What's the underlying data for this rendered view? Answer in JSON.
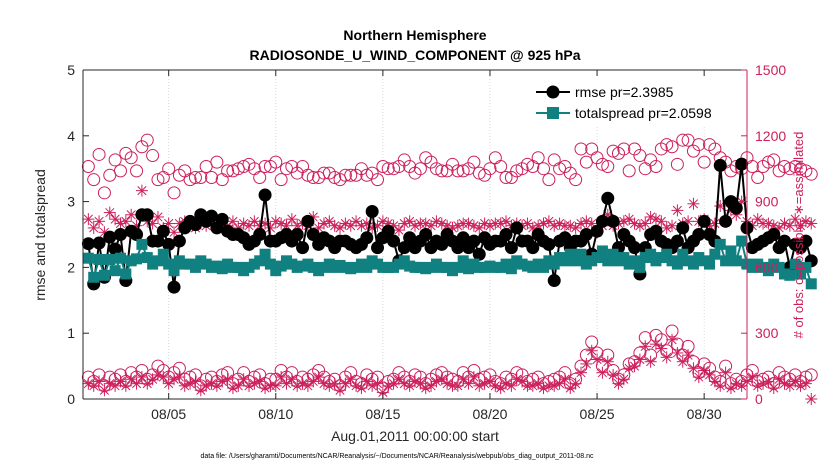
{
  "chart_data": {
    "type": "line",
    "title": [
      "Northern Hemisphere",
      "RADIOSONDE_U_WIND_COMPONENT @ 925 hPa"
    ],
    "xlabel": "Aug.01,2011 00:00:00 start",
    "ylabel_left": "rmse and totalspread",
    "ylabel_right": "# of obs: o=possible; ∗=assimilated",
    "footer": "data file: /Users/gharamti/Documents/NCAR/Reanalysis/~/Documents/NCAR/Reanalysis/webpub/obs_diag_output_2011-08.nc",
    "xlim": [
      1,
      32
    ],
    "ylim_left": [
      0,
      5
    ],
    "ylim_right": [
      0,
      1500
    ],
    "x_ticks": [
      {
        "day": 5,
        "label": "08/05"
      },
      {
        "day": 10,
        "label": "08/10"
      },
      {
        "day": 15,
        "label": "08/15"
      },
      {
        "day": 20,
        "label": "08/20"
      },
      {
        "day": 25,
        "label": "08/25"
      },
      {
        "day": 30,
        "label": "08/30"
      }
    ],
    "y_ticks_left": [
      "0",
      "1",
      "2",
      "3",
      "4",
      "5"
    ],
    "y_ticks_right": [
      "0",
      "300",
      "600",
      "900",
      "1200",
      "1500"
    ],
    "colors": {
      "rmse": "#000000",
      "totalspread": "#118080",
      "obs": "#cc1f5c",
      "axis": "#262626"
    },
    "legend": [
      {
        "key": "rmse",
        "label": "rmse pr=2.3985"
      },
      {
        "key": "totalspread",
        "label": "totalspread pr=2.0598"
      }
    ],
    "x_start": 1.25,
    "x_step": 0.25,
    "series": [
      {
        "name": "rmse",
        "values": [
          2.36,
          1.75,
          2.37,
          1.85,
          2.46,
          2.28,
          2.5,
          1.8,
          2.55,
          2.5,
          2.8,
          2.8,
          2.4,
          2.4,
          2.55,
          2.35,
          1.7,
          2.4,
          2.6,
          2.7,
          2.65,
          2.8,
          2.7,
          2.78,
          2.6,
          2.73,
          2.55,
          2.5,
          2.5,
          2.45,
          2.35,
          2.4,
          2.5,
          3.1,
          2.4,
          2.4,
          2.45,
          2.5,
          2.4,
          2.5,
          2.3,
          2.7,
          2.5,
          2.35,
          2.45,
          2.4,
          2.3,
          2.4,
          2.4,
          2.35,
          2.3,
          2.35,
          2.45,
          2.85,
          2.3,
          2.45,
          2.55,
          2.4,
          2.1,
          2.3,
          2.45,
          2.3,
          2.4,
          2.5,
          2.3,
          2.4,
          2.35,
          2.5,
          2.4,
          2.3,
          2.45,
          2.3,
          2.4,
          2.2,
          2.45,
          2.35,
          2.4,
          2.4,
          2.5,
          2.3,
          2.6,
          2.4,
          2.4,
          2.3,
          2.5,
          2.4,
          2.35,
          1.8,
          2.4,
          2.45,
          2.3,
          2.4,
          2.4,
          2.5,
          2.2,
          2.55,
          2.7,
          3.05,
          2.7,
          2.3,
          2.5,
          2.4,
          2.3,
          1.9,
          2.3,
          2.5,
          2.55,
          2.4,
          2.35,
          2.3,
          2.4,
          2.6,
          2.3,
          2.4,
          2.5,
          2.7,
          2.5,
          2.4,
          3.55,
          2.7,
          3.0,
          2.9,
          3.57,
          2.6,
          2.3,
          2.35,
          2.4,
          2.45,
          2.5,
          2.3,
          2.4,
          2.0,
          2.35,
          2.3,
          2.4,
          2.1
        ]
      },
      {
        "name": "totalspread",
        "values": [
          2.14,
          1.85,
          2.12,
          1.88,
          2.12,
          1.95,
          2.14,
          1.9,
          2.1,
          2.13,
          2.35,
          2.15,
          2.05,
          2.1,
          2.2,
          2.05,
          1.95,
          2.1,
          2.05,
          2.05,
          2.0,
          2.1,
          2.05,
          2.0,
          2.02,
          1.98,
          2.05,
          2.0,
          2.0,
          1.95,
          2.0,
          2.05,
          2.1,
          2.2,
          2.05,
          1.95,
          2.02,
          2.1,
          2.05,
          2.0,
          2.02,
          2.05,
          2.0,
          1.95,
          2.0,
          2.05,
          2.0,
          2.03,
          2.0,
          1.98,
          2.0,
          2.05,
          2.0,
          2.1,
          2.05,
          2.0,
          2.0,
          2.0,
          2.05,
          2.1,
          2.02,
          2.0,
          2.0,
          1.98,
          2.0,
          2.05,
          2.0,
          2.0,
          1.95,
          2.0,
          2.1,
          1.98,
          2.05,
          2.0,
          2.0,
          2.02,
          2.0,
          2.0,
          2.05,
          1.98,
          2.1,
          2.05,
          2.02,
          2.0,
          2.05,
          2.0,
          2.1,
          2.05,
          2.15,
          2.1,
          2.2,
          2.1,
          2.2,
          2.05,
          2.1,
          2.15,
          2.25,
          2.1,
          2.2,
          2.1,
          2.15,
          2.05,
          2.1,
          2.0,
          2.15,
          2.2,
          2.1,
          2.15,
          2.2,
          2.1,
          2.05,
          2.2,
          2.1,
          2.05,
          2.15,
          2.1,
          2.05,
          2.2,
          2.35,
          2.1,
          2.25,
          2.1,
          2.4,
          2.05,
          2.0,
          2.05,
          2.0,
          1.95,
          2.05,
          2.0,
          1.9,
          1.88,
          2.05,
          1.9,
          2.0,
          1.75
        ]
      },
      {
        "name": "possible",
        "values": [
          1060,
          1000,
          1115,
          940,
          1020,
          1090,
          1040,
          1120,
          1100,
          1040,
          1150,
          1180,
          1110,
          1000,
          1010,
          1050,
          940,
          1020,
          1040,
          1000,
          1010,
          1010,
          1060,
          1010,
          1080,
          1000,
          1040,
          1040,
          1050,
          1060,
          1070,
          1050,
          1010,
          1060,
          1060,
          1080,
          1000,
          1050,
          1060,
          1030,
          1060,
          1020,
          1010,
          1010,
          1030,
          1030,
          1010,
          1000,
          1020,
          1020,
          1020,
          1050,
          1020,
          1030,
          1000,
          1060,
          1050,
          1050,
          1060,
          1090,
          1060,
          1030,
          1050,
          1100,
          1080,
          1050,
          1040,
          1040,
          1070,
          1040,
          1040,
          1050,
          1080,
          1030,
          1020,
          1050,
          1100,
          1060,
          1010,
          1010,
          1040,
          1050,
          1070,
          1060,
          1100,
          1050,
          1000,
          1090,
          1050,
          1060,
          1030,
          1000,
          1140,
          1080,
          1140,
          1100,
          1070,
          1060,
          1130,
          1120,
          1140,
          1040,
          1140,
          1110,
          1050,
          1090,
          1060,
          1140,
          1160,
          1150,
          1070,
          1180,
          1180,
          1130,
          1160,
          1080,
          1160,
          1140,
          1100,
          1080,
          1040,
          1060,
          1050,
          1100,
          1060,
          1010,
          1060,
          1080,
          1090,
          1040,
          1060,
          1050,
          1060,
          1050,
          1040,
          1025
        ]
      },
      {
        "name": "assimilated",
        "values": [
          820,
          780,
          810,
          760,
          850,
          820,
          800,
          810,
          840,
          790,
          950,
          810,
          800,
          830,
          780,
          800,
          760,
          800,
          810,
          790,
          780,
          800,
          790,
          800,
          790,
          780,
          790,
          810,
          780,
          800,
          790,
          810,
          790,
          800,
          780,
          810,
          800,
          790,
          820,
          790,
          800,
          790,
          830,
          780,
          800,
          810,
          790,
          780,
          800,
          790,
          810,
          790,
          800,
          780,
          790,
          810,
          800,
          790,
          770,
          800,
          810,
          790,
          800,
          800,
          790,
          810,
          800,
          790,
          780,
          790,
          800,
          800,
          790,
          780,
          800,
          790,
          800,
          800,
          810,
          790,
          800,
          790,
          800,
          780,
          790,
          800,
          810,
          790,
          800,
          790,
          790,
          780,
          800,
          810,
          800,
          760,
          790,
          840,
          790,
          800,
          810,
          820,
          800,
          790,
          800,
          830,
          820,
          810,
          780,
          790,
          860,
          800,
          810,
          890,
          810,
          820,
          790,
          800,
          880,
          810,
          860,
          840,
          900,
          810,
          790,
          820,
          800,
          800,
          790,
          780,
          800,
          790,
          820,
          790,
          810,
          800
        ]
      },
      {
        "name": "possible_low",
        "values": [
          100,
          80,
          110,
          60,
          100,
          90,
          110,
          80,
          120,
          100,
          130,
          90,
          110,
          150,
          130,
          100,
          120,
          140,
          90,
          100,
          110,
          60,
          90,
          100,
          80,
          110,
          120,
          70,
          90,
          120,
          80,
          100,
          110,
          70,
          90,
          90,
          130,
          100,
          120,
          80,
          100,
          90,
          110,
          130,
          100,
          80,
          90,
          60,
          100,
          120,
          80,
          70,
          110,
          90,
          100,
          50,
          80,
          90,
          120,
          100,
          80,
          110,
          100,
          70,
          90,
          110,
          120,
          100,
          90,
          80,
          120,
          100,
          130,
          90,
          100,
          110,
          80,
          70,
          100,
          90,
          120,
          110,
          80,
          90,
          100,
          70,
          80,
          90,
          100,
          120,
          70,
          90,
          150,
          200,
          260,
          210,
          150,
          200,
          130,
          90,
          110,
          160,
          170,
          210,
          280,
          200,
          290,
          270,
          220,
          310,
          250,
          200,
          240,
          170,
          120,
          160,
          140,
          100,
          80,
          150,
          70,
          90,
          80,
          110,
          130,
          80,
          90,
          100,
          70,
          120,
          100,
          90,
          110,
          80,
          100,
          110
        ]
      },
      {
        "name": "assimilated_low",
        "values": [
          70,
          60,
          80,
          40,
          70,
          60,
          80,
          60,
          90,
          70,
          100,
          70,
          90,
          110,
          100,
          70,
          90,
          100,
          60,
          70,
          80,
          40,
          60,
          70,
          60,
          80,
          90,
          50,
          60,
          90,
          60,
          70,
          80,
          50,
          60,
          60,
          100,
          70,
          90,
          60,
          70,
          60,
          80,
          100,
          70,
          60,
          70,
          40,
          70,
          90,
          60,
          50,
          80,
          60,
          70,
          30,
          60,
          70,
          90,
          70,
          60,
          80,
          70,
          50,
          60,
          80,
          90,
          70,
          60,
          60,
          90,
          70,
          100,
          60,
          70,
          80,
          60,
          50,
          70,
          60,
          90,
          80,
          60,
          60,
          70,
          50,
          60,
          60,
          70,
          90,
          50,
          70,
          120,
          160,
          220,
          180,
          120,
          170,
          110,
          70,
          90,
          140,
          150,
          180,
          240,
          170,
          250,
          230,
          190,
          270,
          210,
          170,
          200,
          140,
          100,
          130,
          110,
          80,
          60,
          120,
          50,
          70,
          60,
          80,
          100,
          60,
          70,
          80,
          50,
          90,
          70,
          60,
          80,
          60,
          70,
          0
        ]
      }
    ]
  }
}
